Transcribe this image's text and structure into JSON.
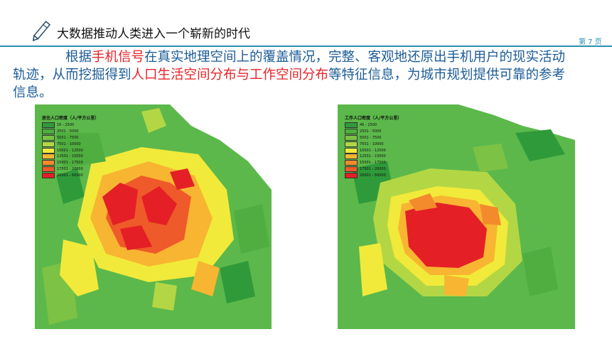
{
  "header": {
    "title": "大数据推动人类进入一个崭新的时代",
    "page_label": "第 7 页"
  },
  "body": {
    "segments": [
      {
        "text": "根据",
        "highlight": false
      },
      {
        "text": "手机信号",
        "highlight": true
      },
      {
        "text": "在真实地理空间上的覆盖情况，完整、客观地还原出手机用户的现实活动轨迹，从而挖掘得到",
        "highlight": false
      },
      {
        "text": "人口生活空间分布与工作空间分布",
        "highlight": true
      },
      {
        "text": "等特征信息，为城市规划提供可靠的参考信息。",
        "highlight": false
      }
    ]
  },
  "maps": [
    {
      "legend_title": "居住人口密度（人/平方公里）",
      "legend_items": [
        "16 - 2500",
        "2501 - 5000",
        "5001 - 7500",
        "7501 - 10000",
        "10001 - 12500",
        "12501 - 15000",
        "15001 - 17500",
        "17501 - 20000",
        "20001 - 60000"
      ]
    },
    {
      "legend_title": "工作人口密度（人/平方公里）",
      "legend_items": [
        "46 - 2500",
        "2501 - 5000",
        "5001 - 7500",
        "7501 - 10000",
        "10001 - 12500",
        "12501 - 15000",
        "15001 - 17500",
        "17501 - 20000",
        "20001 - 60000"
      ]
    }
  ],
  "colors": {
    "accent": "#2e8fb0",
    "text_blue": "#1d5c96",
    "highlight_red": "#e8242a",
    "legend_swatches": [
      "#2f9a3a",
      "#4fae3f",
      "#7cc244",
      "#b3d744",
      "#f1ea3a",
      "#f8b531",
      "#f38a2c",
      "#ee5a29",
      "#e51f26"
    ]
  }
}
